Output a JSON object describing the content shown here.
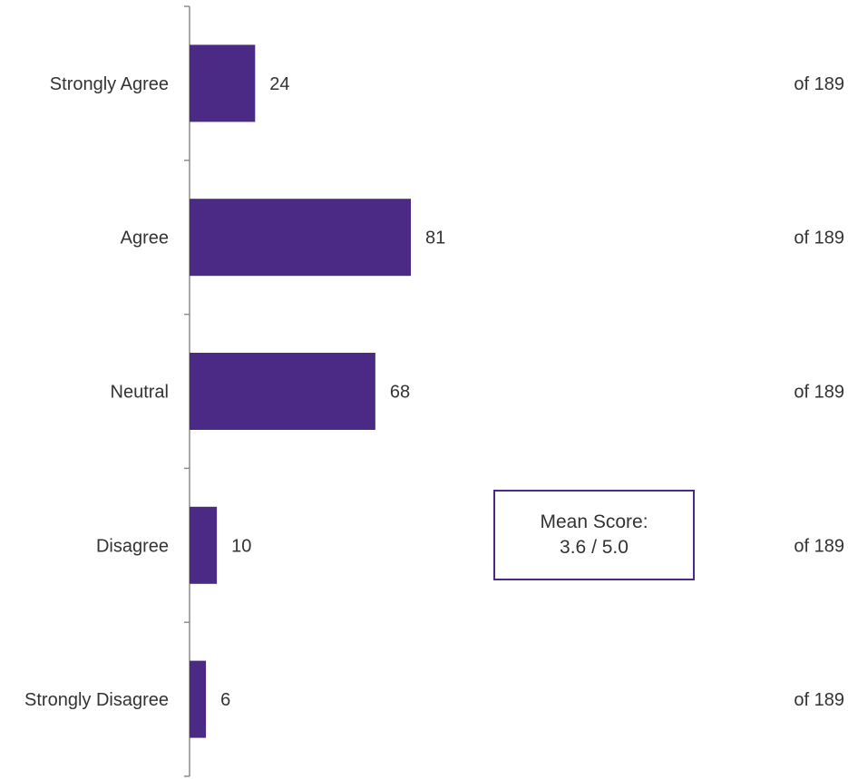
{
  "chart_data": {
    "type": "bar",
    "orientation": "horizontal",
    "categories": [
      "Strongly Agree",
      "Agree",
      "Neutral",
      "Disagree",
      "Strongly Disagree"
    ],
    "values": [
      24,
      81,
      68,
      10,
      6
    ],
    "data_labels": [
      "24",
      "81",
      "68",
      "10",
      "6"
    ],
    "totals_labels": [
      "of 189",
      "of 189",
      "of 189",
      "of 189",
      "of 189"
    ],
    "total": 189,
    "bar_color": "#4a2a84",
    "grid": false,
    "legend": "none"
  },
  "annotation": {
    "line1": "Mean Score:",
    "line2": "3.6 / 5.0"
  }
}
